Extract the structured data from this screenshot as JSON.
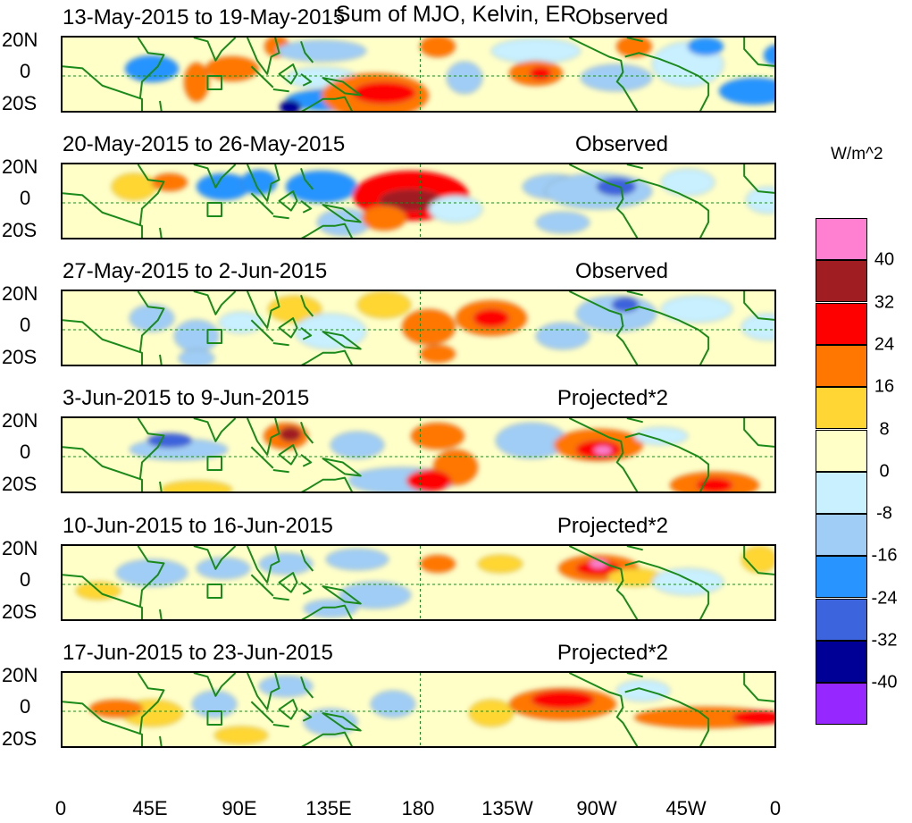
{
  "title": "Sum of MJO, Kelvin, ER",
  "units": "W/m^2",
  "panels": [
    {
      "date_range": "13-May-2015 to 19-May-2015",
      "label": "Observed"
    },
    {
      "date_range": "20-May-2015 to 26-May-2015",
      "label": "Observed"
    },
    {
      "date_range": "27-May-2015 to 2-Jun-2015",
      "label": "Observed"
    },
    {
      "date_range": "3-Jun-2015 to 9-Jun-2015",
      "label": "Projected*2"
    },
    {
      "date_range": "10-Jun-2015 to 16-Jun-2015",
      "label": "Projected*2"
    },
    {
      "date_range": "17-Jun-2015 to 23-Jun-2015",
      "label": "Projected*2"
    }
  ],
  "lat_labels": [
    "20N",
    "0",
    "20S"
  ],
  "lon_labels": [
    "0",
    "45E",
    "90E",
    "135E",
    "180",
    "135W",
    "90W",
    "45W",
    "0"
  ],
  "colorbar": {
    "labels": [
      "40",
      "32",
      "24",
      "16",
      "8",
      "0",
      "-8",
      "-16",
      "-24",
      "-32",
      "-40"
    ],
    "colors": [
      "#ff7fd0",
      "#a01e22",
      "#ff0000",
      "#ff7700",
      "#ffd633",
      "#ffffc8",
      "#c8f0ff",
      "#a0cdf5",
      "#2894ff",
      "#3c64dc",
      "#000096",
      "#9628ff"
    ]
  }
}
